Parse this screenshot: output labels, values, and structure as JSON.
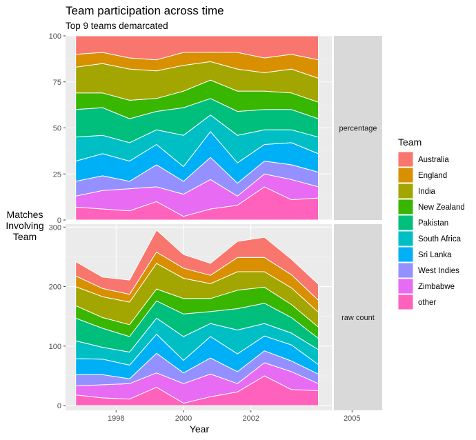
{
  "chart_data": {
    "type": "area",
    "title": "Team participation across time",
    "subtitle": "Top 9 teams demarcated",
    "xlabel": "Year",
    "ylabel": "Matches\nInvolving\nTeam",
    "x": [
      1996.8,
      1997.6,
      1998.4,
      1999.2,
      2000.0,
      2000.8,
      2001.6,
      2002.4,
      2003.2,
      2004.0
    ],
    "x_ticks": [
      "1998",
      "2000",
      "2002",
      "2005"
    ],
    "xlim": [
      1996.5,
      2004.4
    ],
    "series_order_bottom_to_top": [
      "other",
      "Zimbabwe",
      "West Indies",
      "Sri Lanka",
      "South Africa",
      "Pakistan",
      "New Zealand",
      "India",
      "England",
      "Australia"
    ],
    "legend": {
      "title": "Team",
      "position": "right",
      "entries": [
        {
          "name": "Australia",
          "color": "#F8766D"
        },
        {
          "name": "England",
          "color": "#D89000"
        },
        {
          "name": "India",
          "color": "#A3A500"
        },
        {
          "name": "New Zealand",
          "color": "#39B600"
        },
        {
          "name": "Pakistan",
          "color": "#00BF7D"
        },
        {
          "name": "South Africa",
          "color": "#00BFC4"
        },
        {
          "name": "Sri Lanka",
          "color": "#00B0F6"
        },
        {
          "name": "West Indies",
          "color": "#9590FF"
        },
        {
          "name": "Zimbabwe",
          "color": "#E76BF3"
        },
        {
          "name": "other",
          "color": "#FF62BC"
        }
      ]
    },
    "panels": [
      {
        "strip": "percentage",
        "ylim": [
          0,
          100
        ],
        "y_ticks": [
          0,
          25,
          50,
          75,
          100
        ],
        "cumulative_boundaries": [
          [
            7,
            6,
            5,
            10,
            2,
            6,
            8,
            18,
            11,
            12
          ],
          [
            13,
            16,
            17,
            18,
            14,
            22,
            13,
            25,
            22,
            18
          ],
          [
            21,
            24,
            21,
            30,
            21,
            34,
            20,
            32,
            30,
            26
          ],
          [
            32,
            36,
            32,
            41,
            29,
            48,
            31,
            41,
            42,
            36
          ],
          [
            45,
            46,
            42,
            49,
            46,
            57,
            46,
            49,
            49,
            45
          ],
          [
            60,
            61,
            55,
            59,
            61,
            66,
            59,
            60,
            60,
            55
          ],
          [
            69,
            69,
            65,
            66,
            70,
            76,
            70,
            70,
            69,
            64
          ],
          [
            83,
            85,
            82,
            81,
            84,
            86,
            82,
            80,
            82,
            77
          ],
          [
            90,
            91,
            88,
            87,
            91,
            91,
            91,
            88,
            90,
            87
          ],
          [
            100,
            100,
            100,
            100,
            100,
            100,
            100,
            100,
            100,
            100
          ]
        ]
      },
      {
        "strip": "raw count",
        "ylim": [
          -8,
          305
        ],
        "y_ticks": [
          0,
          100,
          200,
          300
        ],
        "cumulative_boundaries": [
          [
            18,
            13,
            11,
            31,
            4,
            15,
            23,
            50,
            27,
            25
          ],
          [
            33,
            35,
            37,
            55,
            37,
            53,
            37,
            72,
            57,
            37
          ],
          [
            52,
            52,
            45,
            88,
            55,
            80,
            57,
            92,
            75,
            53
          ],
          [
            79,
            78,
            68,
            120,
            76,
            116,
            87,
            117,
            102,
            69
          ],
          [
            109,
            98,
            90,
            147,
            116,
            138,
            127,
            138,
            122,
            94
          ],
          [
            147,
            130,
            116,
            176,
            154,
            158,
            163,
            172,
            148,
            113
          ],
          [
            168,
            148,
            136,
            196,
            180,
            180,
            194,
            199,
            170,
            132
          ],
          [
            200,
            183,
            174,
            239,
            214,
            205,
            225,
            225,
            198,
            157
          ],
          [
            218,
            197,
            187,
            258,
            231,
            219,
            249,
            249,
            220,
            177
          ],
          [
            242,
            216,
            211,
            295,
            254,
            239,
            276,
            283,
            246,
            204
          ]
        ]
      }
    ]
  }
}
